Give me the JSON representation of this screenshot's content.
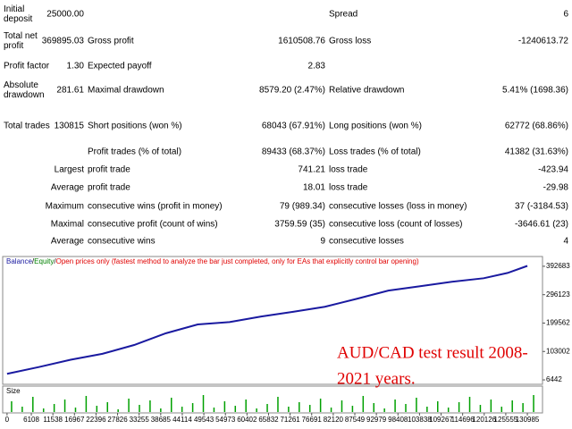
{
  "report": {
    "rows": [
      {
        "label": "Initial deposit",
        "value": "25000.00",
        "label3": "Spread",
        "value3": "6"
      },
      {
        "label": "Total net profit",
        "value": "369895.03",
        "label2": "Gross profit",
        "value2": "1610508.76",
        "label3": "Gross loss",
        "value3": "-1240613.72"
      },
      {
        "label": "Profit factor",
        "value": "1.30",
        "label2": "Expected payoff",
        "value2": "2.83"
      },
      {
        "label": "Absolute drawdown",
        "value": "281.61",
        "label2": "Maximal drawdown",
        "value2": "8579.20 (2.47%)",
        "label3": "Relative drawdown",
        "value3": "5.41% (1698.36)"
      },
      {
        "label": "Total trades",
        "value": "130815",
        "label2": "Short positions (won %)",
        "value2": "68043 (67.91%)",
        "label3": "Long positions (won %)",
        "value3": "62772 (68.86%)"
      },
      {
        "label2": "Profit trades (% of total)",
        "value2": "89433 (68.37%)",
        "label3": "Loss trades (% of total)",
        "value3": "41382 (31.63%)"
      },
      {
        "prefix": "Largest",
        "label2": "profit trade",
        "value2": "741.21",
        "label3": "loss trade",
        "value3": "-423.94"
      },
      {
        "prefix": "Average",
        "label2": "profit trade",
        "value2": "18.01",
        "label3": "loss trade",
        "value3": "-29.98"
      },
      {
        "prefix": "Maximum",
        "label2": "consecutive wins (profit in money)",
        "value2": "79 (989.34)",
        "label3": "consecutive losses (loss in money)",
        "value3": "37 (-3184.53)"
      },
      {
        "prefix": "Maximal",
        "label2": "consecutive profit (count of wins)",
        "value2": "3759.59 (35)",
        "label3": "consecutive loss (count of losses)",
        "value3": "-3646.61 (23)"
      },
      {
        "prefix": "Average",
        "label2": "consecutive wins",
        "value2": "9",
        "label3": "consecutive losses",
        "value3": "4"
      }
    ]
  },
  "chart_data": {
    "type": "line",
    "legend_separator": "/",
    "legend_extra": [
      {
        "text": "Equity",
        "color": "#008000"
      },
      {
        "text": "Open prices only (fastest method to analyze the bar just completed, only for EAs that explicitly control bar opening)",
        "color": "#e00000"
      }
    ],
    "annotation": [
      "AUD/CAD test result 2008-",
      "2021 years."
    ],
    "x": [
      0,
      8000,
      16000,
      24000,
      32000,
      40000,
      48000,
      56000,
      64000,
      72000,
      80000,
      88000,
      96000,
      104000,
      112000,
      120000,
      126000,
      130985
    ],
    "series": [
      {
        "name": "Balance",
        "color": "#1a1aa0",
        "values": [
          27000,
          50000,
          75000,
          95000,
          125000,
          165000,
          195000,
          203000,
          222000,
          238000,
          255000,
          282000,
          310000,
          325000,
          340000,
          352000,
          370000,
          394000
        ]
      }
    ],
    "xlim": [
      -1100,
      134800
    ],
    "xticks": [
      0,
      6108,
      11538,
      16967,
      22396,
      27826,
      33255,
      38685,
      44114,
      49543,
      54973,
      60402,
      65832,
      71261,
      76691,
      82120,
      87549,
      92979,
      98408,
      103838,
      109267,
      114696,
      120126,
      125555,
      130985
    ],
    "ylim": [
      -8650,
      425900
    ],
    "yticks": [
      6442,
      103002,
      199562,
      296123,
      392683
    ],
    "size_panel": {
      "label": "Size",
      "color": "#00a000",
      "values": [
        60,
        30,
        85,
        20,
        45,
        70,
        25,
        90,
        35,
        55,
        15,
        75,
        40,
        65,
        20,
        80,
        30,
        50,
        95,
        25,
        60,
        35,
        70,
        20,
        45,
        85,
        30,
        55,
        40,
        75,
        25,
        65,
        35,
        90,
        50,
        20,
        70,
        45,
        80,
        30,
        60,
        25,
        55,
        85,
        40,
        70,
        30,
        65,
        50,
        95
      ]
    }
  }
}
